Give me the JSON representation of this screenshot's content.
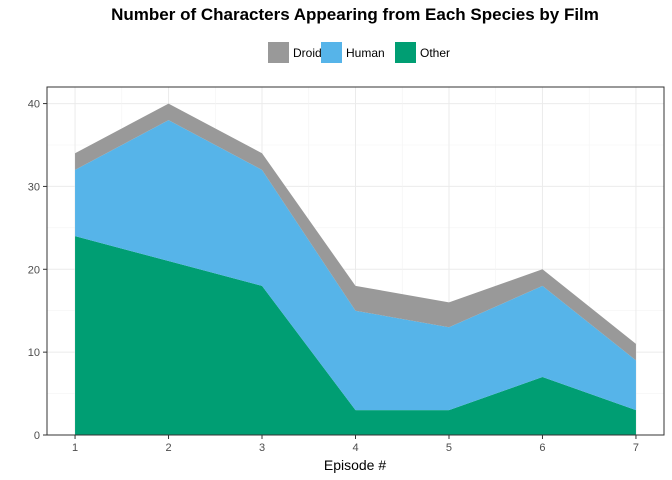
{
  "chart_data": {
    "type": "area",
    "stacked": true,
    "title": "Number of Characters Appearing from Each Species by Film",
    "xlabel": "Episode #",
    "ylabel": "",
    "x": [
      1,
      2,
      3,
      4,
      5,
      6,
      7
    ],
    "xlim": [
      0.7,
      7.3
    ],
    "ylim": [
      0,
      42
    ],
    "yticks": [
      0,
      10,
      20,
      30,
      40
    ],
    "grid": true,
    "legend_position": "top",
    "series": [
      {
        "name": "Other",
        "color": "#009E73",
        "values": [
          24,
          21,
          18,
          3,
          3,
          7,
          3
        ]
      },
      {
        "name": "Human",
        "color": "#56B4E9",
        "values": [
          8,
          17,
          14,
          12,
          10,
          11,
          6
        ]
      },
      {
        "name": "Droid",
        "color": "#999999",
        "values": [
          2,
          2,
          2,
          3,
          3,
          2,
          2
        ]
      }
    ],
    "legend_order": [
      "Droid",
      "Human",
      "Other"
    ]
  }
}
